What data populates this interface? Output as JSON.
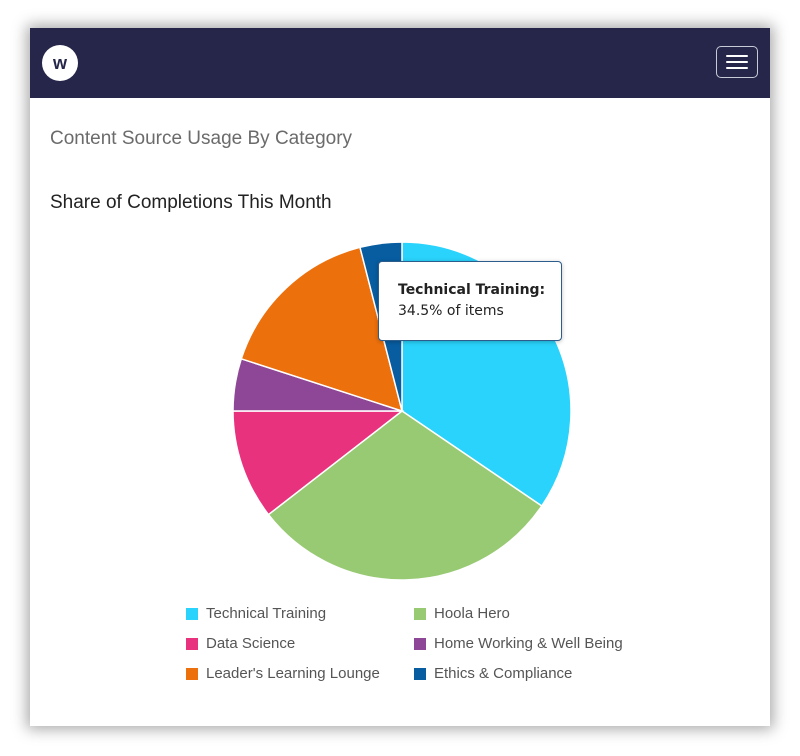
{
  "navbar": {
    "logo_letter": "w",
    "logo_icon": "w-logo-icon",
    "menu_icon": "hamburger-menu-icon"
  },
  "section_title": "Content Source Usage By Category",
  "chart_title": "Share of Completions This Month",
  "tooltip": {
    "label": "Technical Training:",
    "text": "34.5% of items"
  },
  "chart_data": {
    "type": "pie",
    "title": "Share of Completions This Month",
    "slices": [
      {
        "name": "Technical Training",
        "value": 34.5,
        "color": "#29d3fb"
      },
      {
        "name": "Hoola Hero",
        "value": 30.0,
        "color": "#98c973"
      },
      {
        "name": "Data Science",
        "value": 10.5,
        "color": "#e8327e"
      },
      {
        "name": "Home Working & Well Being",
        "value": 5.0,
        "color": "#8e4796"
      },
      {
        "name": "Leader's Learning Lounge",
        "value": 16.0,
        "color": "#ec700c"
      },
      {
        "name": "Ethics & Compliance",
        "value": 4.0,
        "color": "#075da0"
      }
    ],
    "legend_placement": "bottom",
    "legend_columns": 2
  }
}
